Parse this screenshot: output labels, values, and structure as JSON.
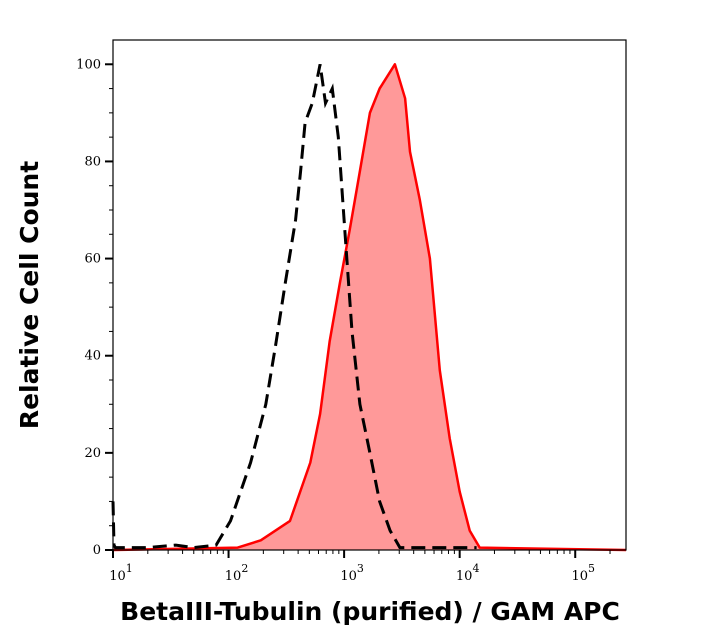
{
  "chart_data": {
    "type": "area",
    "title": "",
    "xlabel": "BetaIII-Tubulin (purified) / GAM APC",
    "ylabel": "Relative Cell Count",
    "xscale": "log",
    "xlim": [
      10,
      275000
    ],
    "ylim": [
      0,
      105
    ],
    "grid": false,
    "x_ticks": [
      {
        "base": "10",
        "exp": "1",
        "value": 10
      },
      {
        "base": "10",
        "exp": "2",
        "value": 100
      },
      {
        "base": "10",
        "exp": "3",
        "value": 1000
      },
      {
        "base": "10",
        "exp": "4",
        "value": 10000
      },
      {
        "base": "10",
        "exp": "5",
        "value": 100000
      }
    ],
    "y_ticks": [
      0,
      20,
      40,
      60,
      80,
      100
    ],
    "series": [
      {
        "style": "dashed-line",
        "color": "#000000",
        "x": [
          10,
          10.2,
          10.5,
          20,
          35,
          50,
          78,
          104,
          155,
          210,
          255,
          310,
          380,
          420,
          460,
          530,
          620,
          690,
          790,
          890,
          1020,
          1170,
          1370,
          1670,
          2030,
          2500,
          3040,
          5000,
          10000,
          14000
        ],
        "y": [
          10,
          1,
          0.5,
          0.5,
          1,
          0.5,
          1,
          6,
          18,
          30,
          42,
          55,
          68,
          78,
          88,
          92,
          100,
          92,
          95,
          85,
          65,
          45,
          30,
          20,
          10,
          4,
          0.5,
          0.5,
          0.5,
          0.5
        ]
      },
      {
        "style": "filled",
        "color": "#ff0000",
        "fill": "#ff9999",
        "x": [
          10,
          120,
          190,
          340,
          510,
          620,
          750,
          920,
          1120,
          1370,
          1670,
          2030,
          2750,
          3370,
          3720,
          4530,
          5520,
          6730,
          8200,
          10000,
          12200,
          14900,
          275000
        ],
        "y": [
          0,
          0.5,
          2,
          6,
          18,
          28,
          43,
          55,
          66,
          78,
          90,
          95,
          100,
          93,
          82,
          72,
          60,
          37,
          23,
          12,
          4,
          0.5,
          0
        ]
      }
    ]
  }
}
